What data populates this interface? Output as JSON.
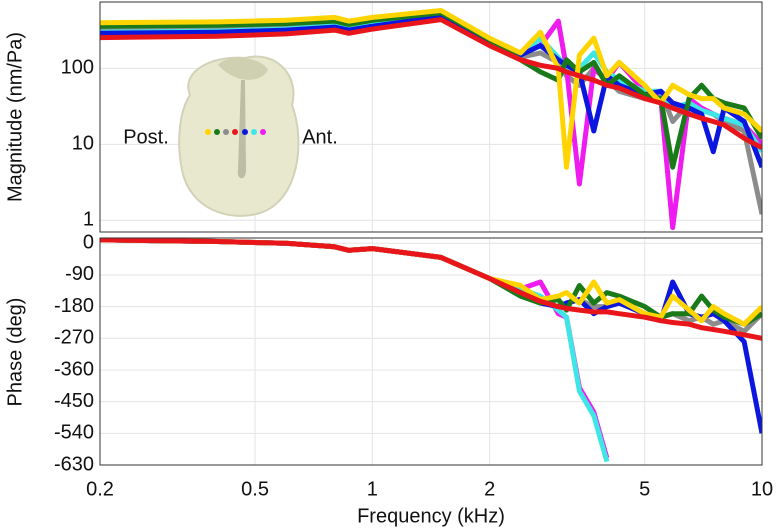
{
  "chart_data": [
    {
      "type": "line",
      "ylabel": "Magnitude (nm/Pa)",
      "xlog": true,
      "ylog": true,
      "grid": true,
      "x": [
        0.2,
        0.4,
        0.6,
        0.8,
        0.87,
        1,
        1.5,
        2,
        2.4,
        2.7,
        3,
        3.15,
        3.4,
        3.7,
        4,
        4.3,
        5,
        5.5,
        5.9,
        6.5,
        7,
        7.5,
        8,
        9,
        10
      ],
      "xlim": [
        0.2,
        10
      ],
      "ylim": [
        0.7,
        750
      ],
      "yticks": [
        1,
        10,
        100
      ],
      "annotations": [
        "Post.",
        "Ant."
      ],
      "series": [
        {
          "color": "#8c8c8c",
          "values": [
            315,
            325,
            345,
            380,
            340,
            380,
            500,
            230,
            140,
            160,
            120,
            80,
            60,
            100,
            70,
            50,
            40,
            50,
            20,
            35,
            30,
            25,
            20,
            15,
            1.2
          ]
        },
        {
          "color": "#ee1cee",
          "values": [
            280,
            290,
            310,
            345,
            310,
            350,
            470,
            215,
            160,
            200,
            420,
            100,
            3,
            100,
            70,
            120,
            50,
            40,
            0.8,
            40,
            30,
            25,
            22,
            18,
            10
          ]
        },
        {
          "color": "#3ee6e6",
          "values": [
            300,
            310,
            330,
            365,
            330,
            375,
            490,
            225,
            150,
            250,
            140,
            100,
            100,
            160,
            90,
            70,
            50,
            50,
            30,
            35,
            28,
            25,
            22,
            18,
            8
          ]
        },
        {
          "color": "#0b16de",
          "values": [
            290,
            300,
            320,
            350,
            320,
            360,
            480,
            220,
            150,
            200,
            130,
            110,
            90,
            15,
            80,
            60,
            45,
            50,
            35,
            30,
            25,
            8,
            30,
            20,
            5
          ]
        },
        {
          "color": "#1a7a1a",
          "values": [
            360,
            370,
            390,
            420,
            380,
            430,
            540,
            240,
            130,
            90,
            70,
            130,
            90,
            120,
            60,
            80,
            45,
            40,
            5,
            40,
            60,
            40,
            35,
            30,
            12
          ]
        },
        {
          "color": "#ffd400",
          "values": [
            400,
            410,
            430,
            470,
            420,
            470,
            580,
            250,
            160,
            300,
            100,
            5,
            150,
            250,
            80,
            120,
            60,
            35,
            60,
            45,
            40,
            40,
            30,
            25,
            15
          ]
        },
        {
          "color": "#e8161b",
          "values": [
            255,
            265,
            285,
            320,
            290,
            330,
            440,
            200,
            130,
            110,
            100,
            90,
            80,
            70,
            60,
            55,
            40,
            35,
            30,
            25,
            22,
            20,
            18,
            12,
            9
          ]
        }
      ]
    },
    {
      "type": "line",
      "ylabel": "Phase (deg)",
      "xlabel": "Frequency (kHz)",
      "xlog": true,
      "grid": true,
      "x": [
        0.2,
        0.4,
        0.6,
        0.8,
        0.87,
        1,
        1.5,
        2,
        2.4,
        2.7,
        3,
        3.15,
        3.4,
        3.7,
        4,
        4.3,
        5,
        5.5,
        5.9,
        6.5,
        7,
        7.5,
        8,
        9,
        10
      ],
      "xlim": [
        0.2,
        10
      ],
      "xticks": [
        0.2,
        0.5,
        1,
        2,
        5,
        10
      ],
      "ylim": [
        -630,
        15
      ],
      "yticks": [
        0,
        -90,
        -180,
        -270,
        -360,
        -450,
        -540,
        -630
      ],
      "series": [
        {
          "color": "#8c8c8c",
          "values": [
            10,
            5,
            0,
            -10,
            -20,
            -15,
            -40,
            -100,
            -140,
            -170,
            -180,
            -170,
            -160,
            -180,
            -180,
            -170,
            -200,
            -210,
            -200,
            -220,
            -210,
            -230,
            -220,
            -250,
            -200
          ]
        },
        {
          "color": "#ee1cee",
          "values": [
            10,
            5,
            0,
            -10,
            -20,
            -15,
            -40,
            -100,
            -130,
            -110,
            -200,
            -210,
            -410,
            -480,
            -610,
            null,
            null,
            null,
            null,
            null,
            null,
            null,
            null,
            null,
            null
          ]
        },
        {
          "color": "#3ee6e6",
          "values": [
            10,
            5,
            0,
            -10,
            -20,
            -15,
            -40,
            -100,
            -130,
            -150,
            -190,
            -210,
            -420,
            -490,
            -620,
            null,
            null,
            null,
            null,
            null,
            null,
            null,
            null,
            null,
            null
          ]
        },
        {
          "color": "#0b16de",
          "values": [
            10,
            5,
            0,
            -10,
            -20,
            -15,
            -40,
            -100,
            -140,
            -170,
            -180,
            -170,
            -160,
            -200,
            -180,
            -170,
            -200,
            -220,
            -110,
            -200,
            -210,
            -200,
            -220,
            -280,
            -540
          ]
        },
        {
          "color": "#1a7a1a",
          "values": [
            10,
            5,
            0,
            -10,
            -20,
            -15,
            -40,
            -100,
            -150,
            -170,
            -160,
            -190,
            -120,
            -170,
            -140,
            -150,
            -180,
            -210,
            -200,
            -200,
            -150,
            -190,
            -210,
            -230,
            -200
          ]
        },
        {
          "color": "#ffd400",
          "values": [
            10,
            5,
            0,
            -10,
            -20,
            -15,
            -40,
            -100,
            -120,
            -160,
            -150,
            -140,
            -170,
            -110,
            -170,
            -160,
            -200,
            -210,
            -150,
            -190,
            -220,
            -180,
            -200,
            -230,
            -180
          ]
        },
        {
          "color": "#e8161b",
          "values": [
            10,
            5,
            0,
            -10,
            -20,
            -15,
            -40,
            -100,
            -140,
            -165,
            -180,
            -185,
            -190,
            -195,
            -195,
            -200,
            -210,
            -220,
            -225,
            -230,
            -240,
            -245,
            -250,
            -260,
            -270
          ]
        }
      ]
    }
  ]
}
